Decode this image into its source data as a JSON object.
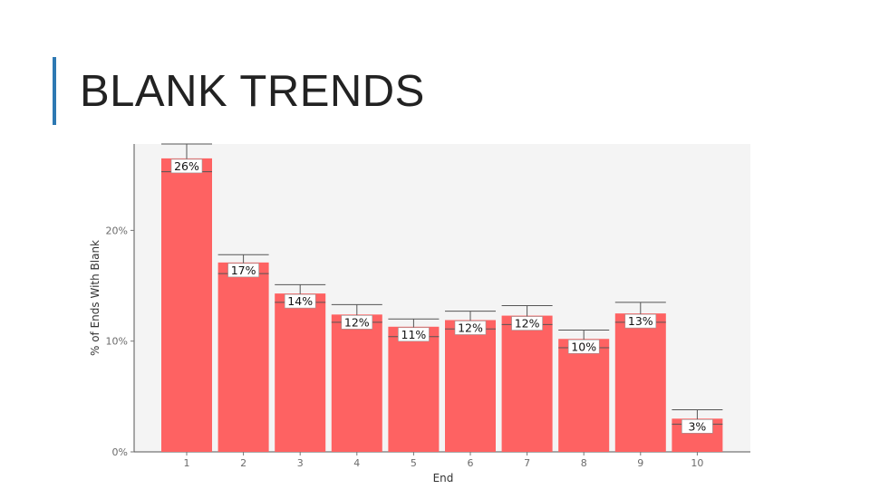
{
  "slide": {
    "title": "BLANK TRENDS"
  },
  "colors": {
    "accent": "#2e79b3",
    "bar": "#fe6262",
    "plot_background": "#f4f4f4",
    "error_bar": "#555555"
  },
  "chart_data": {
    "type": "bar",
    "title": "",
    "xlabel": "End",
    "ylabel": "% of Ends With Blank",
    "categories": [
      "1",
      "2",
      "3",
      "4",
      "5",
      "6",
      "7",
      "8",
      "9",
      "10"
    ],
    "values": [
      26.5,
      17.1,
      14.3,
      12.4,
      11.3,
      11.9,
      12.3,
      10.2,
      12.5,
      3.0
    ],
    "data_labels": [
      "26%",
      "17%",
      "14%",
      "12%",
      "11%",
      "12%",
      "12%",
      "10%",
      "13%",
      "3%"
    ],
    "error_low": [
      25.3,
      16.1,
      13.5,
      11.7,
      10.4,
      11.1,
      11.5,
      9.4,
      11.7,
      2.5
    ],
    "error_high": [
      27.8,
      17.8,
      15.1,
      13.3,
      12.0,
      12.7,
      13.2,
      11.0,
      13.5,
      3.8
    ],
    "yticks": [
      0,
      10,
      20
    ],
    "ytick_labels": [
      "0%",
      "10%",
      "20%"
    ],
    "ylim": [
      0,
      27.8
    ],
    "grid": false,
    "legend": "none"
  }
}
